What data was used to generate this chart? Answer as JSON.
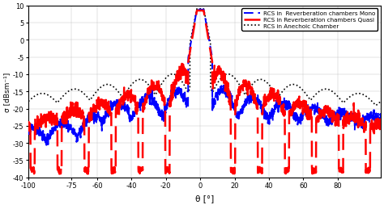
{
  "xlabel": "θ [°]",
  "ylabel": "σ [dBsm⁻¹]",
  "xlim": [
    -100,
    105
  ],
  "ylim": [
    -40,
    10
  ],
  "yticks": [
    10,
    5,
    0,
    -5,
    -10,
    -15,
    -20,
    -25,
    -30,
    -35,
    -40
  ],
  "xticks": [
    -100,
    -75,
    -60,
    -40,
    -20,
    0,
    20,
    40,
    60,
    80
  ],
  "legend_labels": [
    "RCS in  Reverberation chambers Mono",
    "RCS in Reverberation chambers Quasi",
    "RCS in Anechoic Chamber"
  ],
  "colors": {
    "mono": "#0000FF",
    "quasi": "#FF0000",
    "anechoic": "#000000"
  },
  "background_color": "#ffffff"
}
